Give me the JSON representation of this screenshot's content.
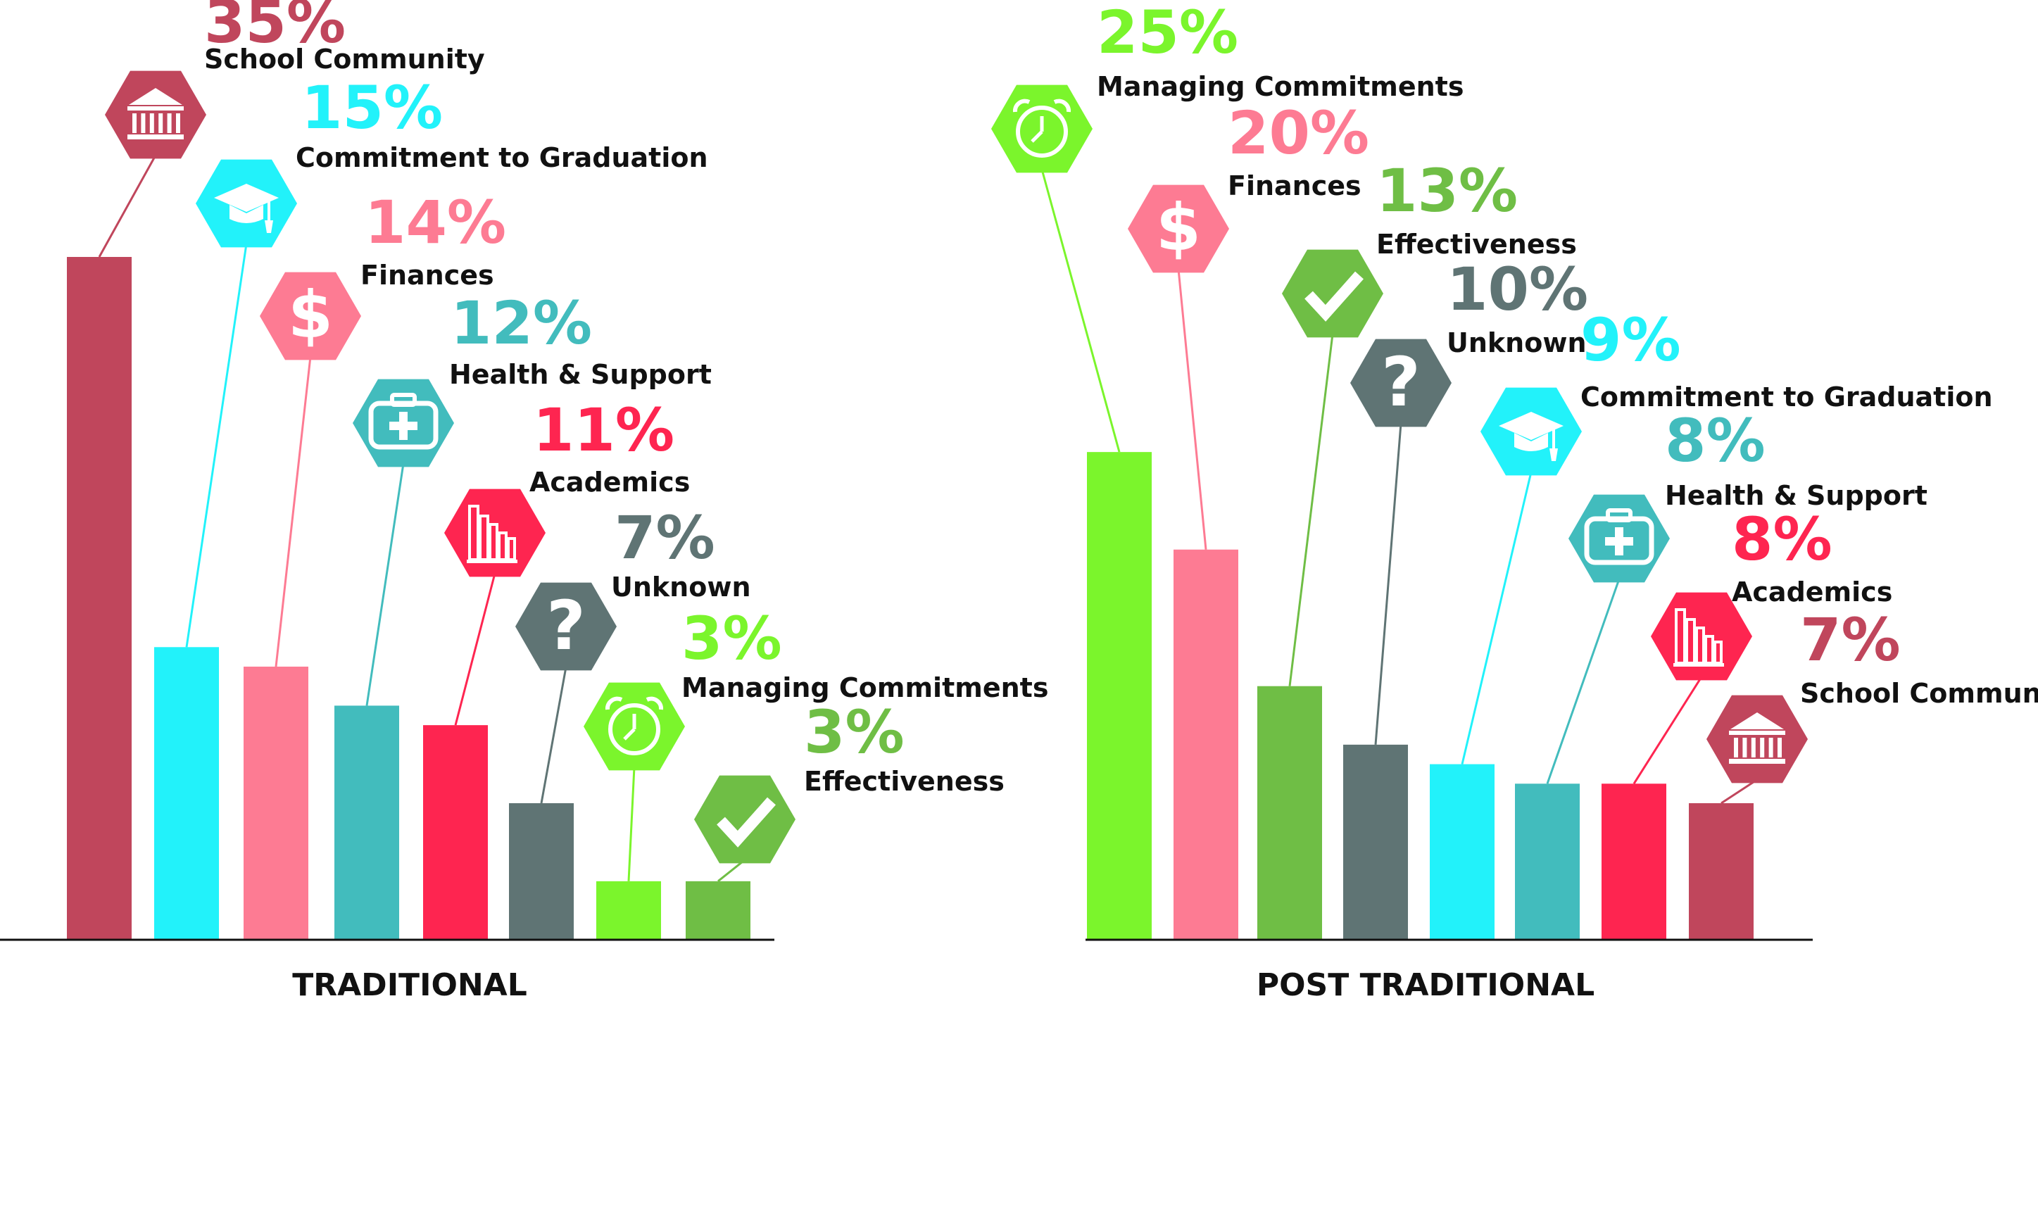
{
  "chart_data": [
    {
      "type": "bar",
      "title": "TRADITIONAL",
      "categories": [
        "School Community",
        "Commitment to Graduation",
        "Finances",
        "Health & Support",
        "Academics",
        "Unknown",
        "Managing Commitments",
        "Effectiveness"
      ],
      "values": [
        35,
        15,
        14,
        12,
        11,
        7,
        3,
        3
      ],
      "value_labels": [
        "35%",
        "15%",
        "14%",
        "12%",
        "11%",
        "7%",
        "3%",
        "3%"
      ],
      "colors": [
        "#c0465c",
        "#22f2fa",
        "#fd7b93",
        "#42bcbd",
        "#fe2550",
        "#5f7474",
        "#7bf52c",
        "#6fbe45"
      ],
      "icons": [
        "building-icon",
        "graduation-cap-icon",
        "dollar-icon",
        "first-aid-kit-icon",
        "books-icon",
        "question-icon",
        "alarm-clock-icon",
        "checkmark-icon"
      ],
      "ylim": [
        0,
        35
      ],
      "grid": false
    },
    {
      "type": "bar",
      "title": "POST TRADITIONAL",
      "categories": [
        "Managing Commitments",
        "Finances",
        "Effectiveness",
        "Unknown",
        "Commitment to Graduation",
        "Health & Support",
        "Academics",
        "School Community"
      ],
      "values": [
        25,
        20,
        13,
        10,
        9,
        8,
        8,
        7
      ],
      "value_labels": [
        "25%",
        "20%",
        "13%",
        "10%",
        "9%",
        "8%",
        "8%",
        "7%"
      ],
      "colors": [
        "#7bf52c",
        "#fd7b93",
        "#6fbe45",
        "#5f7474",
        "#22f2fa",
        "#42bcbd",
        "#fe2550",
        "#c0465c"
      ],
      "icons": [
        "alarm-clock-icon",
        "dollar-icon",
        "checkmark-icon",
        "question-icon",
        "graduation-cap-icon",
        "first-aid-kit-icon",
        "books-icon",
        "building-icon"
      ],
      "ylim": [
        0,
        35
      ],
      "grid": false
    }
  ]
}
